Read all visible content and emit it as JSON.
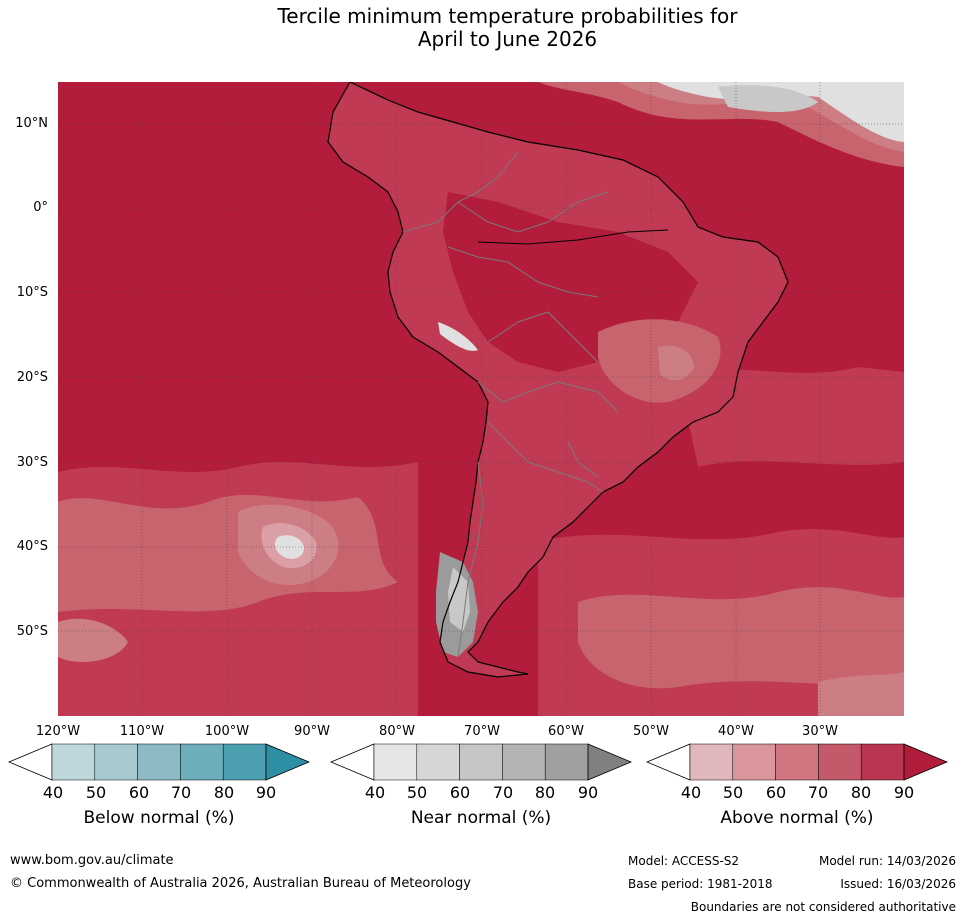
{
  "title": {
    "line1": "Tercile minimum temperature probabilities for",
    "line2": "April to June 2026"
  },
  "map": {
    "lat_labels": [
      "10°N",
      "0°",
      "10°S",
      "20°S",
      "30°S",
      "40°S",
      "50°S"
    ],
    "lon_labels": [
      "120°W",
      "110°W",
      "100°W",
      "90°W",
      "80°W",
      "70°W",
      "60°W",
      "50°W",
      "40°W",
      "30°W"
    ],
    "colors": {
      "ocean_above": "#b31c3a",
      "land_above": "#bf3a52",
      "above_70": "#c8646e",
      "above_60": "#cd7e84",
      "above_50": "#dba0a5",
      "near_light": "#e0e0e0",
      "near_mid": "#c8c8c8",
      "near_dark": "#9b9b9b",
      "coast": "#000000",
      "borders": "#7a7a7a",
      "grid": "#444444"
    }
  },
  "colorbars": [
    {
      "name": "below",
      "title": "Below normal (%)",
      "ticks": [
        "40",
        "50",
        "60",
        "70",
        "80",
        "90"
      ],
      "colors": [
        "#ffffff",
        "#bdd7dc",
        "#a6c9cf",
        "#8dbac4",
        "#6caebb",
        "#4b9fb0",
        "#2e8ea3"
      ]
    },
    {
      "name": "near",
      "title": "Near normal (%)",
      "ticks": [
        "40",
        "50",
        "60",
        "70",
        "80",
        "90"
      ],
      "colors": [
        "#ffffff",
        "#e6e6e6",
        "#d6d6d6",
        "#c6c6c6",
        "#b4b4b4",
        "#a0a0a0",
        "#808080"
      ]
    },
    {
      "name": "above",
      "title": "Above normal (%)",
      "ticks": [
        "40",
        "50",
        "60",
        "70",
        "80",
        "90"
      ],
      "colors": [
        "#ffffff",
        "#e0b7bc",
        "#d9969c",
        "#cf7680",
        "#c4596a",
        "#b93550",
        "#b11c3b"
      ]
    }
  ],
  "footer": {
    "website": "www.bom.gov.au/climate",
    "copyright": "© Commonwealth of Australia 2026, Australian Bureau of Meteorology",
    "model": "Model: ACCESS-S2",
    "base_period": "Base period: 1981-2018",
    "model_run": "Model run: 14/03/2026",
    "issued": "Issued: 16/03/2026",
    "disclaimer": "Boundaries are not considered authoritative"
  }
}
